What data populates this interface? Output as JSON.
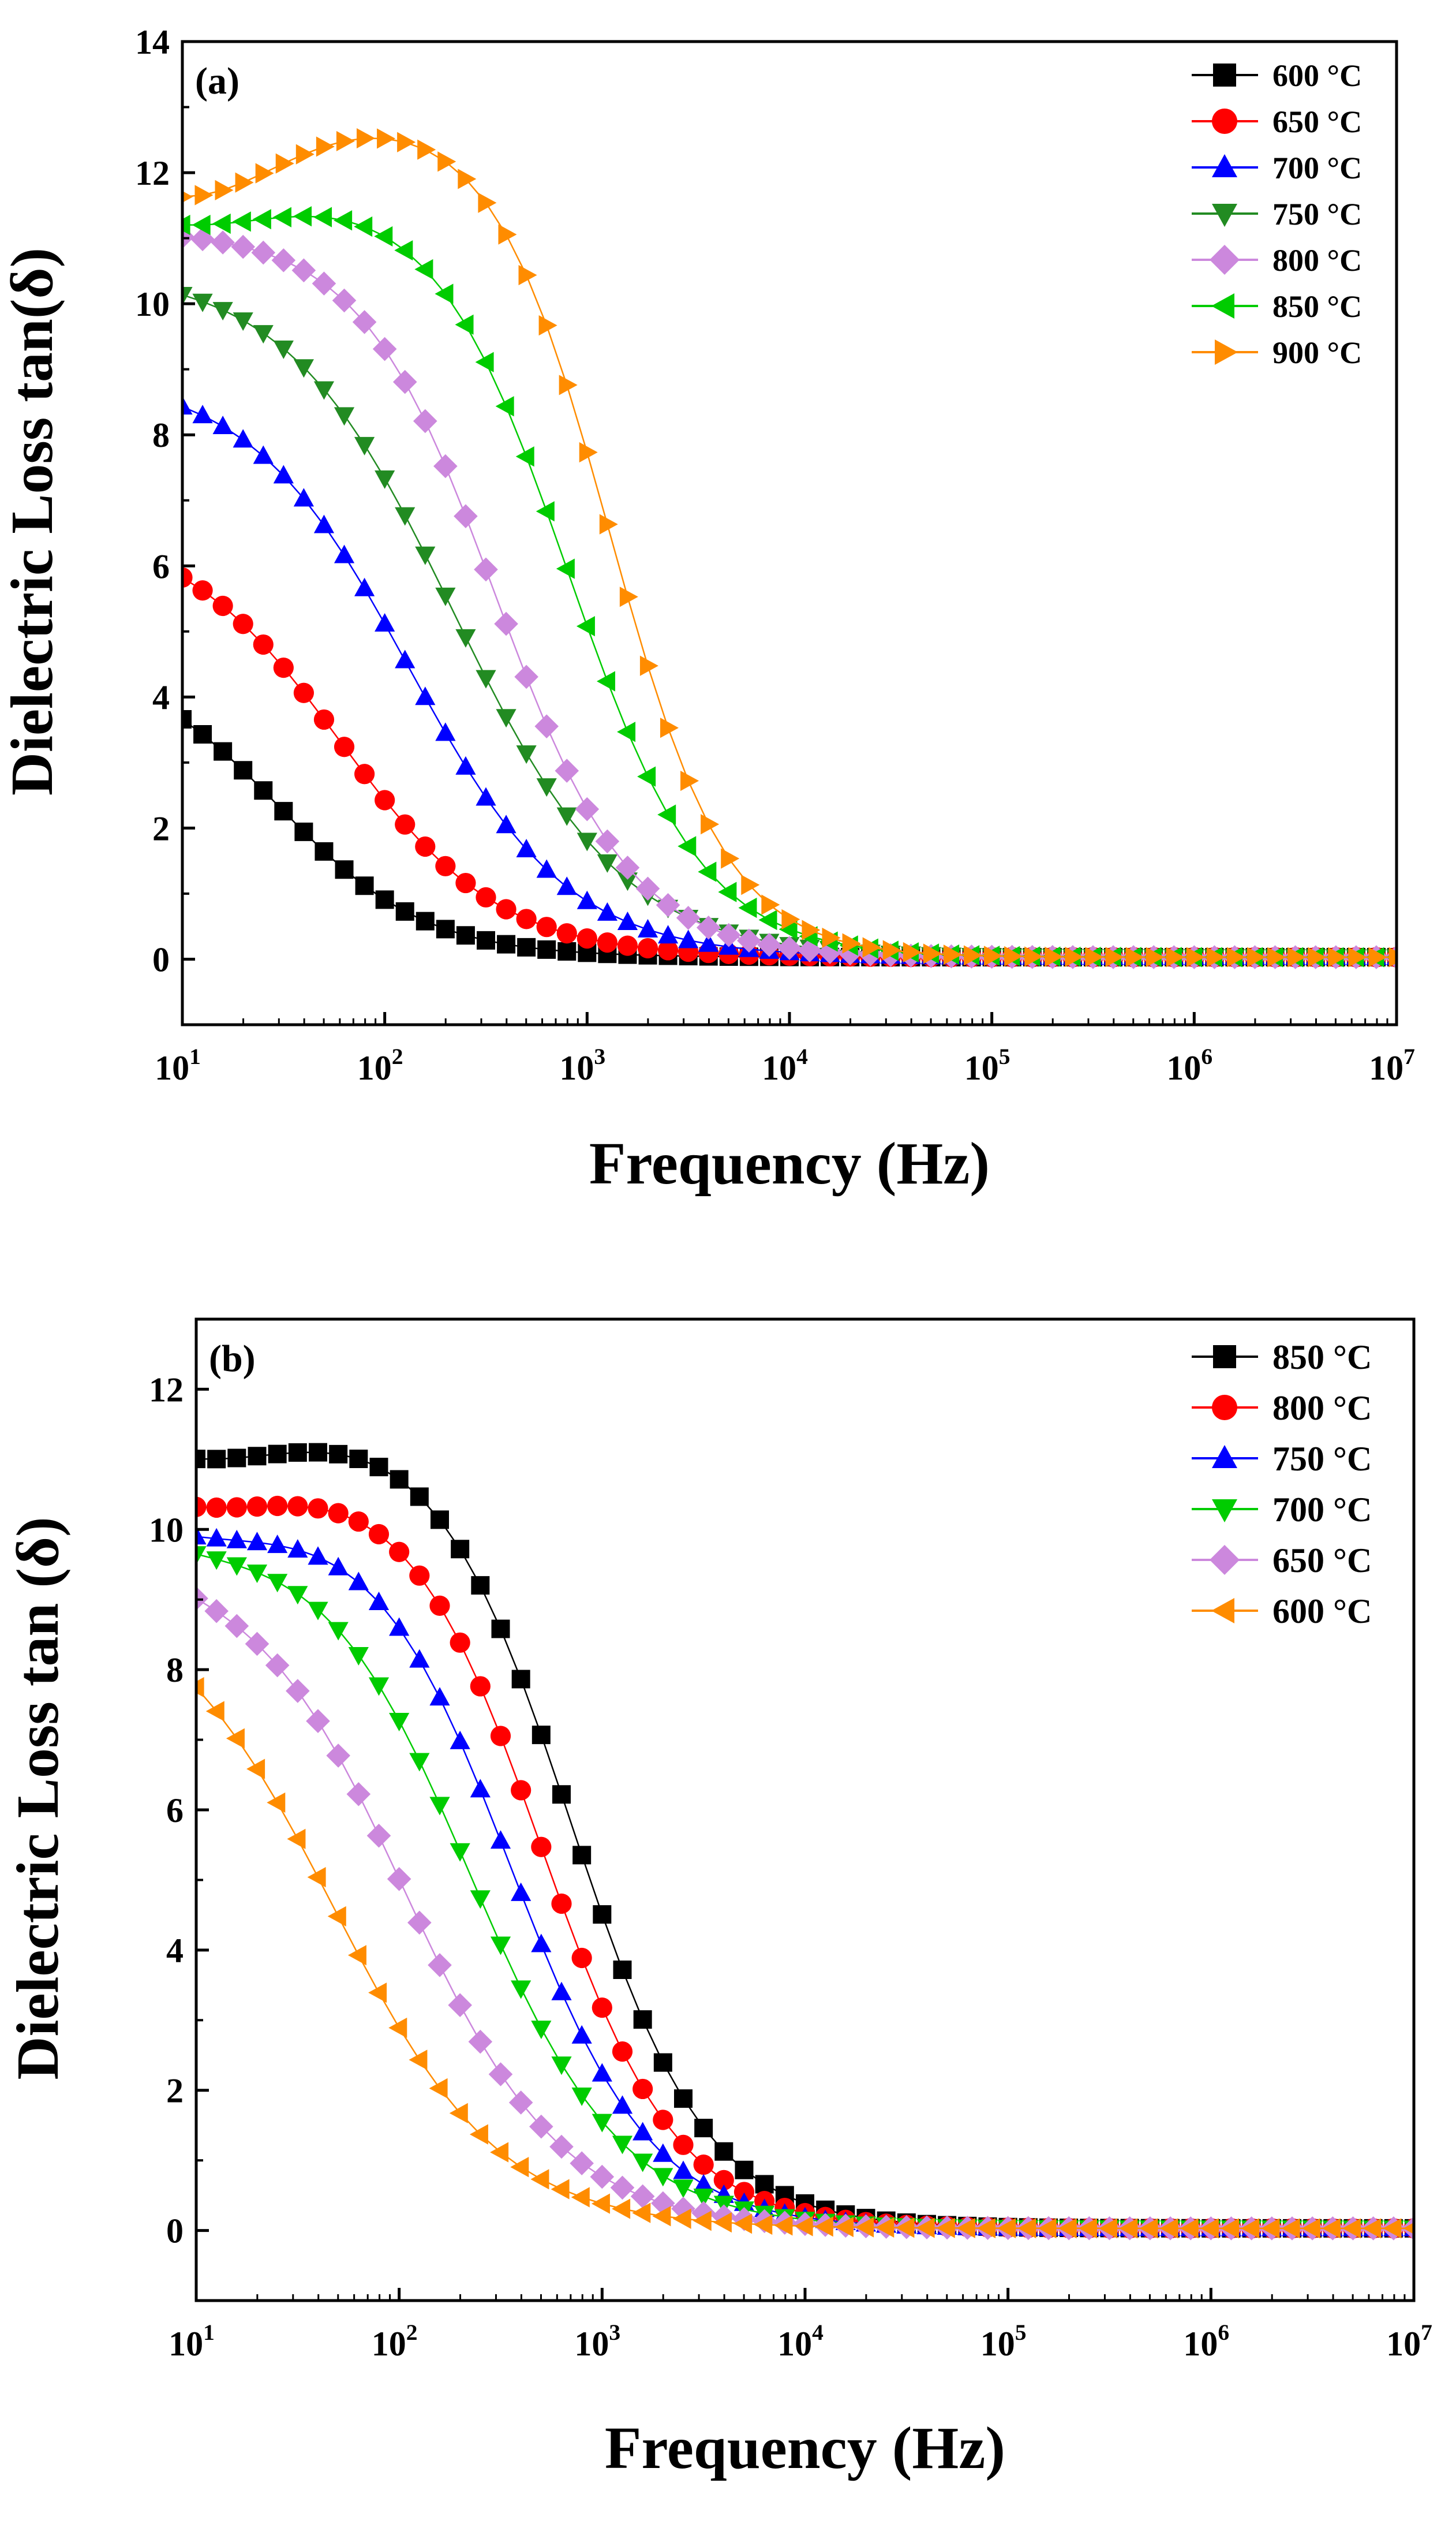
{
  "chart_data": [
    {
      "type": "line",
      "panel_label": "(a)",
      "xlabel": "Frequency (Hz)",
      "ylabel": "Dielectric Loss tan(δ)",
      "xscale": "log",
      "xlim": [
        10,
        10000000
      ],
      "ylim": [
        -1,
        14
      ],
      "x_ticks": [
        {
          "mant": "10",
          "exp": "1",
          "value": 10
        },
        {
          "mant": "10",
          "exp": "2",
          "value": 100
        },
        {
          "mant": "10",
          "exp": "3",
          "value": 1000
        },
        {
          "mant": "10",
          "exp": "4",
          "value": 10000
        },
        {
          "mant": "10",
          "exp": "5",
          "value": 100000
        },
        {
          "mant": "10",
          "exp": "6",
          "value": 1000000
        },
        {
          "mant": "10",
          "exp": "7",
          "value": 10000000
        }
      ],
      "y_ticks": [
        "0",
        "2",
        "4",
        "6",
        "8",
        "10",
        "12",
        "14"
      ],
      "legend_position": "top-right",
      "series": [
        {
          "name": "600 °C",
          "color": "#000000",
          "marker": "square",
          "plateau": 4.6,
          "fc": 30,
          "n": 1.2,
          "flat": 0
        },
        {
          "name": "650 °C",
          "color": "#ff0000",
          "marker": "circle",
          "plateau": 6.6,
          "fc": 60,
          "n": 1.1,
          "flat": 0
        },
        {
          "name": "700 °C",
          "color": "#0000ff",
          "marker": "triangle-up",
          "plateau": 8.9,
          "fc": 130,
          "n": 1.1,
          "flat": 0
        },
        {
          "name": "750 °C",
          "color": "#228b22",
          "marker": "triangle-down",
          "plateau": 10.5,
          "fc": 220,
          "n": 1.05,
          "flat": 0
        },
        {
          "name": "800 °C",
          "color": "#cc88dd",
          "marker": "diamond",
          "plateau": 11.1,
          "fc": 350,
          "n": 1.3,
          "flat": 0
        },
        {
          "name": "850 °C",
          "color": "#00cc00",
          "marker": "triangle-left",
          "plateau": 11.8,
          "fc": 800,
          "n": 1.3,
          "flat": 0.05
        },
        {
          "name": "900 °C",
          "color": "#ff8c00",
          "marker": "triangle-right",
          "plateau": 12.9,
          "fc": 1300,
          "n": 1.5,
          "flat": 0.1
        }
      ]
    },
    {
      "type": "line",
      "panel_label": "(b)",
      "xlabel": "Frequency (Hz)",
      "ylabel": "Dielectric Loss tan (δ)",
      "xscale": "log",
      "xlim": [
        10,
        10000000
      ],
      "ylim": [
        -1,
        13
      ],
      "x_ticks": [
        {
          "mant": "10",
          "exp": "1",
          "value": 10
        },
        {
          "mant": "10",
          "exp": "2",
          "value": 100
        },
        {
          "mant": "10",
          "exp": "3",
          "value": 1000
        },
        {
          "mant": "10",
          "exp": "4",
          "value": 10000
        },
        {
          "mant": "10",
          "exp": "5",
          "value": 100000
        },
        {
          "mant": "10",
          "exp": "6",
          "value": 1000000
        },
        {
          "mant": "10",
          "exp": "7",
          "value": 10000000
        }
      ],
      "y_ticks": [
        "0",
        "2",
        "4",
        "6",
        "8",
        "10",
        "12"
      ],
      "legend_position": "top-right",
      "series": [
        {
          "name": "850 °C",
          "color": "#000000",
          "marker": "square",
          "plateau": 11.6,
          "fc": 700,
          "n": 1.3,
          "flat": 0.05
        },
        {
          "name": "800 °C",
          "color": "#ff0000",
          "marker": "circle",
          "plateau": 10.9,
          "fc": 500,
          "n": 1.3,
          "flat": 0.05
        },
        {
          "name": "750 °C",
          "color": "#0000ff",
          "marker": "triangle-up",
          "plateau": 10.4,
          "fc": 350,
          "n": 1.25,
          "flat": 0.04
        },
        {
          "name": "700 °C",
          "color": "#00cc00",
          "marker": "triangle-down",
          "plateau": 10.2,
          "fc": 220,
          "n": 1.15,
          "flat": 0.03
        },
        {
          "name": "650 °C",
          "color": "#cc88dd",
          "marker": "diamond",
          "plateau": 10.0,
          "fc": 100,
          "n": 1.1,
          "flat": 0.03
        },
        {
          "name": "600 °C",
          "color": "#ff8c00",
          "marker": "triangle-left",
          "plateau": 9.5,
          "fc": 45,
          "n": 1.05,
          "flat": 0.02
        }
      ]
    }
  ]
}
